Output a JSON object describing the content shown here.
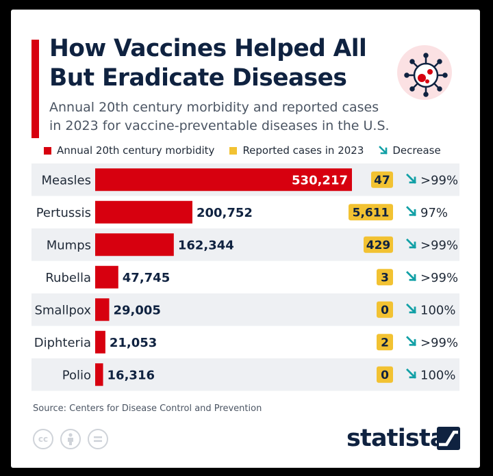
{
  "header": {
    "title_line1": "How Vaccines Helped All",
    "title_line2": "But Eradicate Diseases",
    "subtitle_line1": "Annual 20th century morbidity and reported cases",
    "subtitle_line2": "in 2023 for vaccine-preventable diseases in the U.S."
  },
  "legend": {
    "morbidity": "Annual 20th century morbidity",
    "reported": "Reported cases in 2023",
    "decrease": "Decrease"
  },
  "colors": {
    "morbidity": "#d7000f",
    "reported": "#f2c232",
    "decrease": "#12a0a6",
    "text_dark": "#0f2240",
    "row_band": "#eef0f3"
  },
  "chart_data": {
    "type": "bar",
    "categories": [
      "Measles",
      "Pertussis",
      "Mumps",
      "Rubella",
      "Smallpox",
      "Diphteria",
      "Polio"
    ],
    "series": [
      {
        "name": "Annual 20th century morbidity",
        "values": [
          530217,
          200752,
          162344,
          47745,
          29005,
          21053,
          16316
        ]
      },
      {
        "name": "Reported cases in 2023",
        "values": [
          47,
          5611,
          429,
          3,
          0,
          2,
          0
        ]
      }
    ],
    "value_labels": [
      "530,217",
      "200,752",
      "162,344",
      "47,745",
      "29,005",
      "21,053",
      "16,316"
    ],
    "reported_labels": [
      "47",
      "5,611",
      "429",
      "3",
      "0",
      "2",
      "0"
    ],
    "decrease_labels": [
      ">99%",
      "97%",
      ">99%",
      ">99%",
      "100%",
      ">99%",
      "100%"
    ]
  },
  "footer": {
    "source": "Source: Centers for Disease Control and Prevention",
    "cc_label": "cc",
    "brand": "statista"
  }
}
